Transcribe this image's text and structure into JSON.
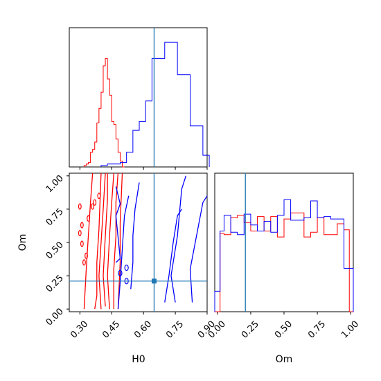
{
  "chart_data": {
    "type": "corner",
    "colors": {
      "series_a": "#ff0000",
      "series_b": "#0000ff",
      "truth": "#1f77b4"
    },
    "parameters": [
      {
        "name": "H0",
        "label": "H0",
        "range": [
          0.25,
          0.9
        ],
        "ticks": [
          "0.30",
          "0.45",
          "0.60",
          "0.75",
          "0.90"
        ],
        "tick_values": [
          0.3,
          0.45,
          0.6,
          0.75,
          0.9
        ],
        "truth": 0.65
      },
      {
        "name": "Om",
        "label": "Om",
        "range": [
          -0.02,
          1.02
        ],
        "ticks": [
          "0.00",
          "0.25",
          "0.50",
          "0.75",
          "1.00"
        ],
        "tick_values": [
          0.0,
          0.25,
          0.5,
          0.75,
          1.0
        ],
        "truth": 0.21
      }
    ],
    "hist_H0": {
      "series_a": {
        "edges": [
          0.32,
          0.33,
          0.34,
          0.35,
          0.36,
          0.37,
          0.38,
          0.39,
          0.4,
          0.41,
          0.42,
          0.43,
          0.44,
          0.45,
          0.46,
          0.47,
          0.48,
          0.49,
          0.5,
          0.51
        ],
        "counts": [
          0.01,
          0.02,
          0.03,
          0.1,
          0.12,
          0.17,
          0.3,
          0.4,
          0.51,
          0.69,
          0.74,
          0.6,
          0.49,
          0.31,
          0.29,
          0.19,
          0.1,
          0.04,
          0.0
        ]
      },
      "series_b": {
        "edges": [
          0.4,
          0.43,
          0.46,
          0.49,
          0.52,
          0.55,
          0.58,
          0.61,
          0.64,
          0.67,
          0.7,
          0.73,
          0.76,
          0.79,
          0.82,
          0.85,
          0.88,
          0.91
        ],
        "counts": [
          0.01,
          0.02,
          0.02,
          0.03,
          0.1,
          0.25,
          0.31,
          0.45,
          0.74,
          0.74,
          0.85,
          0.85,
          0.63,
          0.63,
          0.28,
          0.28,
          0.08
        ]
      }
    },
    "hist_Om": {
      "series_a": {
        "edges": [
          -0.02,
          0.02,
          0.05,
          0.1,
          0.15,
          0.2,
          0.25,
          0.3,
          0.35,
          0.4,
          0.45,
          0.5,
          0.55,
          0.6,
          0.65,
          0.7,
          0.75,
          0.8,
          0.85,
          0.9,
          0.95,
          0.99,
          1.03
        ],
        "counts": [
          0.0,
          0.65,
          0.64,
          0.78,
          0.8,
          0.74,
          0.67,
          0.79,
          0.67,
          0.79,
          0.62,
          0.77,
          0.82,
          0.82,
          0.62,
          0.66,
          0.78,
          0.64,
          0.64,
          0.73,
          0.68,
          0.0
        ]
      },
      "series_b": {
        "edges": [
          -0.02,
          0.02,
          0.05,
          0.1,
          0.15,
          0.2,
          0.25,
          0.3,
          0.35,
          0.4,
          0.45,
          0.5,
          0.55,
          0.6,
          0.65,
          0.7,
          0.75,
          0.8,
          0.85,
          0.9,
          0.95,
          0.99,
          1.03
        ],
        "counts": [
          0.17,
          0.67,
          0.8,
          0.66,
          0.64,
          0.81,
          0.72,
          0.67,
          0.75,
          0.66,
          0.8,
          0.93,
          0.76,
          0.76,
          0.78,
          0.92,
          0.78,
          0.79,
          0.77,
          0.77,
          0.36,
          0.36
        ]
      }
    },
    "contours_2d": {
      "series_a": [
        [
          [
            0.32,
            0.0
          ],
          [
            0.33,
            0.3
          ],
          [
            0.34,
            0.55
          ],
          [
            0.35,
            0.8
          ],
          [
            0.36,
            1.02
          ]
        ],
        [
          [
            0.4,
            0.0
          ],
          [
            0.39,
            0.25
          ],
          [
            0.4,
            0.5
          ],
          [
            0.41,
            0.75
          ],
          [
            0.42,
            1.02
          ]
        ],
        [
          [
            0.37,
            0.0
          ],
          [
            0.38,
            0.1
          ],
          [
            0.38,
            0.35
          ],
          [
            0.39,
            0.6
          ],
          [
            0.4,
            1.02
          ]
        ],
        [
          [
            0.44,
            0.0
          ],
          [
            0.43,
            0.25
          ],
          [
            0.44,
            0.55
          ],
          [
            0.45,
            0.8
          ],
          [
            0.46,
            1.02
          ]
        ],
        [
          [
            0.46,
            0.0
          ],
          [
            0.46,
            0.3
          ],
          [
            0.47,
            0.55
          ],
          [
            0.47,
            0.8
          ],
          [
            0.48,
            1.02
          ]
        ],
        [
          [
            0.42,
            0.02
          ],
          [
            0.41,
            0.25
          ],
          [
            0.42,
            0.55
          ],
          [
            0.43,
            0.82
          ],
          [
            0.43,
            1.02
          ]
        ],
        [
          [
            0.48,
            0.0
          ],
          [
            0.49,
            0.35
          ],
          [
            0.49,
            0.65
          ],
          [
            0.5,
            1.02
          ]
        ]
      ],
      "series_a_blobs": [
        [
          0.3,
          0.77
        ],
        [
          0.31,
          0.63
        ],
        [
          0.3,
          0.57
        ],
        [
          0.32,
          0.35
        ],
        [
          0.33,
          0.4
        ],
        [
          0.36,
          0.77
        ],
        [
          0.34,
          0.68
        ],
        [
          0.37,
          0.8
        ],
        [
          0.39,
          0.85
        ],
        [
          0.31,
          0.49
        ]
      ],
      "series_b": [
        [
          [
            0.48,
            0.0
          ],
          [
            0.49,
            0.2
          ],
          [
            0.5,
            0.45
          ],
          [
            0.51,
            0.7
          ],
          [
            0.53,
            0.85
          ]
        ],
        [
          [
            0.54,
            0.15
          ],
          [
            0.55,
            0.35
          ],
          [
            0.55,
            0.55
          ],
          [
            0.56,
            0.75
          ],
          [
            0.58,
            0.95
          ]
        ],
        [
          [
            0.47,
            0.35
          ],
          [
            0.49,
            0.38
          ],
          [
            0.47,
            0.7
          ],
          [
            0.49,
            0.79
          ],
          [
            0.47,
            0.92
          ]
        ],
        [
          [
            0.75,
            0.05
          ],
          [
            0.73,
            0.25
          ],
          [
            0.76,
            0.55
          ],
          [
            0.78,
            0.9
          ],
          [
            0.8,
            1.0
          ]
        ],
        [
          [
            0.83,
            0.05
          ],
          [
            0.82,
            0.3
          ],
          [
            0.85,
            0.55
          ],
          [
            0.88,
            0.8
          ],
          [
            0.9,
            0.85
          ]
        ],
        [
          [
            0.7,
            0.05
          ],
          [
            0.72,
            0.25
          ],
          [
            0.74,
            0.5
          ],
          [
            0.76,
            0.7
          ],
          [
            0.78,
            0.75
          ]
        ]
      ],
      "series_b_blobs": [
        [
          0.52,
          0.31
        ],
        [
          0.49,
          0.27
        ],
        [
          0.52,
          0.21
        ]
      ]
    }
  }
}
